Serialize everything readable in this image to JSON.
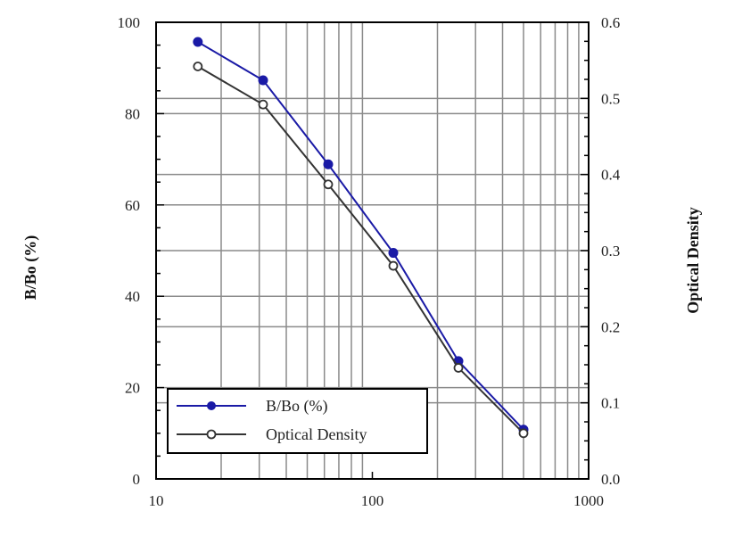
{
  "chart_data": {
    "type": "line",
    "title": "",
    "xlabel": "",
    "ylabel": "B/Bo (%)",
    "y2label": "Optical Density",
    "xscale": "log",
    "xlim": [
      10,
      1000
    ],
    "ylim": [
      0,
      100
    ],
    "y2lim": [
      0.0,
      0.6
    ],
    "x_ticks": [
      "10",
      "100",
      "1000"
    ],
    "y_ticks": [
      "0",
      "20",
      "40",
      "60",
      "80",
      "100"
    ],
    "y2_ticks": [
      "0.0",
      "0.1",
      "0.2",
      "0.3",
      "0.4",
      "0.5",
      "0.6"
    ],
    "grid": true,
    "legend_position": "bottom-left",
    "x": [
      15.6,
      31.25,
      62.5,
      125,
      250,
      500
    ],
    "series": [
      {
        "name": "B/Bo (%)",
        "axis": "left",
        "marker": "filled-circle",
        "color": "#1a1aa6",
        "values": [
          95.7,
          87.3,
          68.9,
          49.5,
          25.8,
          10.8
        ]
      },
      {
        "name": "Optical Density",
        "axis": "right",
        "marker": "open-circle",
        "color": "#333333",
        "values": [
          0.542,
          0.492,
          0.387,
          0.28,
          0.146,
          0.06
        ]
      }
    ]
  }
}
